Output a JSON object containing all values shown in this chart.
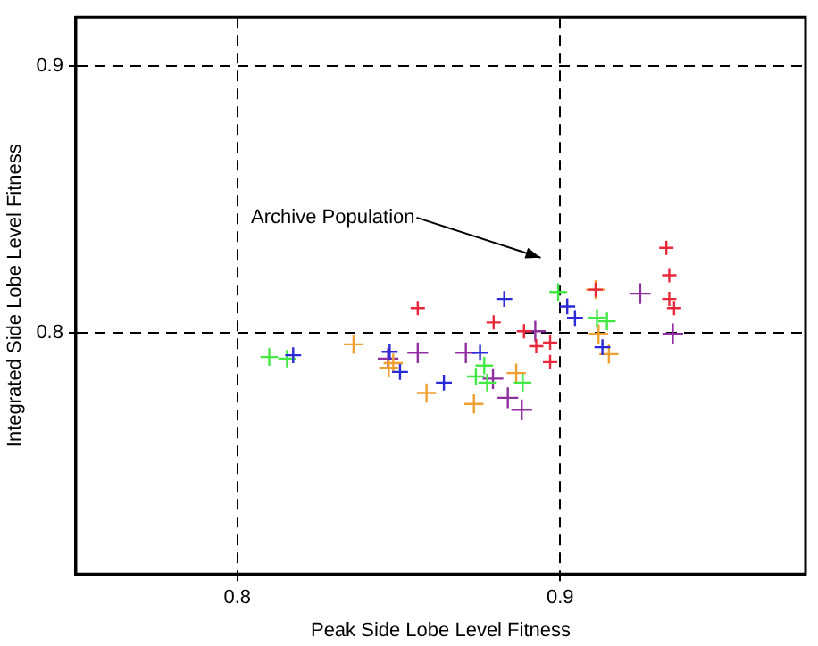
{
  "chart_data": {
    "type": "scatter",
    "xlabel": "Peak Side Lobe Level Fitness",
    "ylabel": "Integrated Side Lobe Level Fitness",
    "xlim": [
      0.75,
      0.976
    ],
    "ylim": [
      0.7095,
      0.9185
    ],
    "xticks": [
      0.8,
      0.9
    ],
    "yticks": [
      0.8,
      0.9
    ],
    "grid": true,
    "legend": false,
    "marker": "cross",
    "annotations": [
      "Archive Population"
    ],
    "series": [
      {
        "color": "#e8283a",
        "x": [
          0.8559,
          0.8794,
          0.8888,
          0.8926,
          0.8969,
          0.8969,
          0.9329,
          0.9338,
          0.9338,
          0.9353,
          0.911
        ],
        "values": [
          0.8093,
          0.8039,
          0.8006,
          0.795,
          0.7963,
          0.789,
          0.8319,
          0.8216,
          0.8127,
          0.8093,
          0.8162
        ]
      },
      {
        "color": "#2a2ad8",
        "x": [
          0.8173,
          0.8472,
          0.8504,
          0.864,
          0.8752,
          0.8827,
          0.9022,
          0.9046,
          0.9131
        ],
        "values": [
          0.7916,
          0.7929,
          0.7853,
          0.7813,
          0.7925,
          0.8127,
          0.8099,
          0.8056,
          0.7946
        ]
      },
      {
        "color": "#44e844",
        "x": [
          0.8099,
          0.8154,
          0.8739,
          0.8765,
          0.8774,
          0.8884,
          0.8994,
          0.9114,
          0.9145
        ],
        "values": [
          0.7909,
          0.7903,
          0.7836,
          0.7877,
          0.7813,
          0.7813,
          0.8153,
          0.8056,
          0.8043
        ]
      },
      {
        "color": "#f0a030",
        "x": [
          0.836,
          0.8469,
          0.8483,
          0.8586,
          0.8733,
          0.8864,
          0.911,
          0.9119,
          0.9151
        ],
        "values": [
          0.7957,
          0.7869,
          0.7886,
          0.7774,
          0.7733,
          0.7849,
          0.8162,
          0.7996,
          0.792
        ]
      },
      {
        "color": "#9030a0",
        "x": [
          0.8467,
          0.8559,
          0.8708,
          0.8792,
          0.8838,
          0.8881,
          0.8923,
          0.9248,
          0.9349
        ],
        "values": [
          0.7903,
          0.7925,
          0.7925,
          0.7828,
          0.7756,
          0.7711,
          0.8006,
          0.8147,
          0.7996
        ]
      }
    ]
  }
}
